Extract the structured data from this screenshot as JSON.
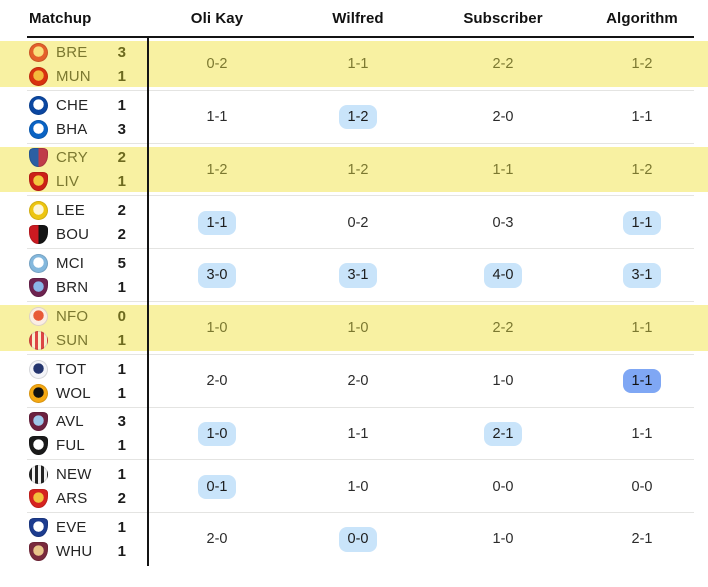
{
  "header": {
    "columns": [
      "Matchup",
      "Oli Kay",
      "Wilfred",
      "Subscriber",
      "Algorithm"
    ]
  },
  "colors": {
    "row_highlight": "#f8f1a2",
    "highlight_text": "#7b7830",
    "highlight_score": "#6d6a1f",
    "pill_light": "#c9e4fa",
    "pill_strong": "#7fa7f4",
    "divider_dark": "#141414",
    "divider_light": "#e4e4e2"
  },
  "rows": [
    {
      "highlight": true,
      "home": {
        "abbr": "BRE",
        "score": "3",
        "crest": {
          "shape": "circle",
          "style": "radial",
          "c1": "#e4602a",
          "c2": "#f9df7b"
        }
      },
      "away": {
        "abbr": "MUN",
        "score": "1",
        "crest": {
          "shape": "circle",
          "style": "radial",
          "c1": "#d9320f",
          "c2": "#f4b93c"
        }
      },
      "predictions": [
        {
          "value": "0-2",
          "pill": "none"
        },
        {
          "value": "1-1",
          "pill": "none"
        },
        {
          "value": "2-2",
          "pill": "none"
        },
        {
          "value": "1-2",
          "pill": "none"
        }
      ]
    },
    {
      "highlight": false,
      "home": {
        "abbr": "CHE",
        "score": "1",
        "crest": {
          "shape": "circle",
          "style": "radial",
          "c1": "#0b47a1",
          "c2": "#ffffff"
        }
      },
      "away": {
        "abbr": "BHA",
        "score": "3",
        "crest": {
          "shape": "circle",
          "style": "radial",
          "c1": "#0a63c4",
          "c2": "#ffffff"
        }
      },
      "predictions": [
        {
          "value": "1-1",
          "pill": "none"
        },
        {
          "value": "1-2",
          "pill": "light"
        },
        {
          "value": "2-0",
          "pill": "none"
        },
        {
          "value": "1-1",
          "pill": "none"
        }
      ]
    },
    {
      "highlight": true,
      "home": {
        "abbr": "CRY",
        "score": "2",
        "crest": {
          "shape": "shield",
          "style": "split",
          "c1": "#2b5fa3",
          "c2": "#c03c49"
        }
      },
      "away": {
        "abbr": "LIV",
        "score": "1",
        "crest": {
          "shape": "shield",
          "style": "radial",
          "c1": "#cc2017",
          "c2": "#f3c83e"
        }
      },
      "predictions": [
        {
          "value": "1-2",
          "pill": "none"
        },
        {
          "value": "1-2",
          "pill": "none"
        },
        {
          "value": "1-1",
          "pill": "none"
        },
        {
          "value": "1-2",
          "pill": "none"
        }
      ]
    },
    {
      "highlight": false,
      "home": {
        "abbr": "LEE",
        "score": "2",
        "crest": {
          "shape": "circle",
          "style": "radial",
          "c1": "#edc511",
          "c2": "#fdf6d8"
        }
      },
      "away": {
        "abbr": "BOU",
        "score": "2",
        "crest": {
          "shape": "shield",
          "style": "split",
          "c1": "#cc1a21",
          "c2": "#141414"
        }
      },
      "predictions": [
        {
          "value": "1-1",
          "pill": "light"
        },
        {
          "value": "0-2",
          "pill": "none"
        },
        {
          "value": "0-3",
          "pill": "none"
        },
        {
          "value": "1-1",
          "pill": "light"
        }
      ]
    },
    {
      "highlight": false,
      "home": {
        "abbr": "MCI",
        "score": "5",
        "crest": {
          "shape": "circle",
          "style": "radial",
          "c1": "#84b8dd",
          "c2": "#ffffff"
        }
      },
      "away": {
        "abbr": "BRN",
        "score": "1",
        "crest": {
          "shape": "shield",
          "style": "radial",
          "c1": "#6e2350",
          "c2": "#8ab6e8"
        }
      },
      "predictions": [
        {
          "value": "3-0",
          "pill": "light"
        },
        {
          "value": "3-1",
          "pill": "light"
        },
        {
          "value": "4-0",
          "pill": "light"
        },
        {
          "value": "3-1",
          "pill": "light"
        }
      ]
    },
    {
      "highlight": true,
      "home": {
        "abbr": "NFO",
        "score": "0",
        "crest": {
          "shape": "circle",
          "style": "radial",
          "c1": "#fbeee4",
          "c2": "#e85a38"
        }
      },
      "away": {
        "abbr": "SUN",
        "score": "1",
        "crest": {
          "shape": "circle",
          "style": "stripes",
          "c1": "#dd4545",
          "c2": "#f8f0d0"
        }
      },
      "predictions": [
        {
          "value": "1-0",
          "pill": "none"
        },
        {
          "value": "1-0",
          "pill": "none"
        },
        {
          "value": "2-2",
          "pill": "none"
        },
        {
          "value": "1-1",
          "pill": "none"
        }
      ]
    },
    {
      "highlight": false,
      "home": {
        "abbr": "TOT",
        "score": "1",
        "crest": {
          "shape": "circle",
          "style": "radial",
          "c1": "#f3f4f8",
          "c2": "#24356e"
        }
      },
      "away": {
        "abbr": "WOL",
        "score": "1",
        "crest": {
          "shape": "circle",
          "style": "radial",
          "c1": "#f5a812",
          "c2": "#111111"
        }
      },
      "predictions": [
        {
          "value": "2-0",
          "pill": "none"
        },
        {
          "value": "2-0",
          "pill": "none"
        },
        {
          "value": "1-0",
          "pill": "none"
        },
        {
          "value": "1-1",
          "pill": "strong"
        }
      ]
    },
    {
      "highlight": false,
      "home": {
        "abbr": "AVL",
        "score": "3",
        "crest": {
          "shape": "shield",
          "style": "radial",
          "c1": "#6c2140",
          "c2": "#9ec7ea"
        }
      },
      "away": {
        "abbr": "FUL",
        "score": "1",
        "crest": {
          "shape": "shield",
          "style": "radial",
          "c1": "#1a1a1a",
          "c2": "#ffffff"
        }
      },
      "predictions": [
        {
          "value": "1-0",
          "pill": "light"
        },
        {
          "value": "1-1",
          "pill": "none"
        },
        {
          "value": "2-1",
          "pill": "light"
        },
        {
          "value": "1-1",
          "pill": "none"
        }
      ]
    },
    {
      "highlight": false,
      "home": {
        "abbr": "NEW",
        "score": "1",
        "crest": {
          "shape": "circle",
          "style": "stripes",
          "c1": "#222222",
          "c2": "#f2f2f2"
        }
      },
      "away": {
        "abbr": "ARS",
        "score": "2",
        "crest": {
          "shape": "shield",
          "style": "radial",
          "c1": "#d6231f",
          "c2": "#f3c13d"
        }
      },
      "predictions": [
        {
          "value": "0-1",
          "pill": "light"
        },
        {
          "value": "1-0",
          "pill": "none"
        },
        {
          "value": "0-0",
          "pill": "none"
        },
        {
          "value": "0-0",
          "pill": "none"
        }
      ]
    },
    {
      "highlight": false,
      "home": {
        "abbr": "EVE",
        "score": "1",
        "crest": {
          "shape": "shield",
          "style": "radial",
          "c1": "#1d3c8f",
          "c2": "#ffffff"
        }
      },
      "away": {
        "abbr": "WHU",
        "score": "1",
        "crest": {
          "shape": "shield",
          "style": "radial",
          "c1": "#7a2a3d",
          "c2": "#e8c48a"
        }
      },
      "predictions": [
        {
          "value": "2-0",
          "pill": "none"
        },
        {
          "value": "0-0",
          "pill": "light"
        },
        {
          "value": "1-0",
          "pill": "none"
        },
        {
          "value": "2-1",
          "pill": "none"
        }
      ]
    }
  ]
}
